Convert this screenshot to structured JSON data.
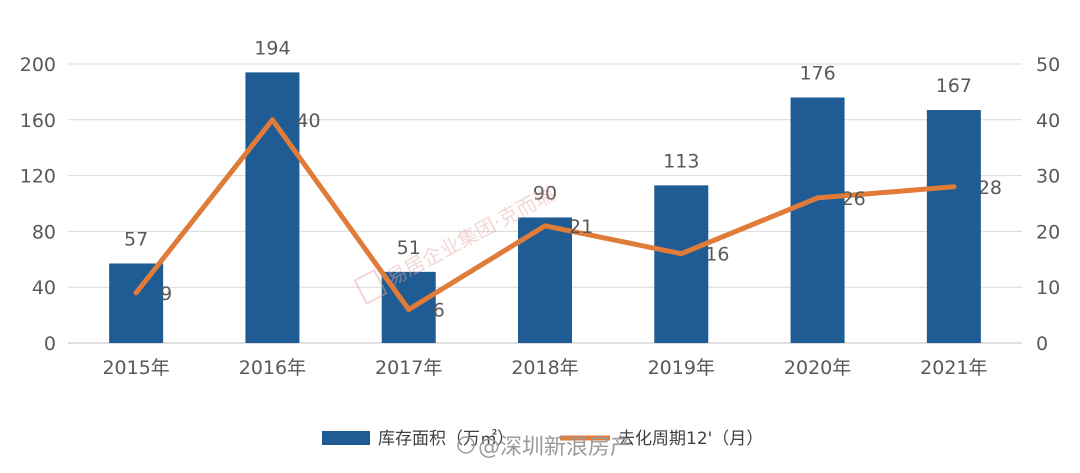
{
  "chart_data": {
    "type": "bar",
    "categories": [
      "2015年",
      "2016年",
      "2017年",
      "2018年",
      "2019年",
      "2020年",
      "2021年"
    ],
    "series": [
      {
        "name": "库存面积（万㎡）",
        "type": "bar",
        "axis": "left",
        "values": [
          57,
          194,
          51,
          90,
          113,
          176,
          167
        ],
        "color": "#1F5C93"
      },
      {
        "name": "去化周期12'（月）",
        "type": "line",
        "axis": "right",
        "values": [
          9,
          40,
          6,
          21,
          16,
          26,
          28
        ],
        "color": "#E07B39"
      }
    ],
    "y_left": {
      "range": [
        0,
        200
      ],
      "ticks": [
        0,
        40,
        80,
        120,
        160,
        200
      ]
    },
    "y_right": {
      "range": [
        0,
        50
      ],
      "ticks": [
        0,
        10,
        20,
        30,
        40,
        50
      ]
    },
    "grid": true,
    "legend_position": "bottom",
    "watermarks": [
      "@深圳新浪房产",
      "易居企业集团·克而瑞"
    ]
  }
}
